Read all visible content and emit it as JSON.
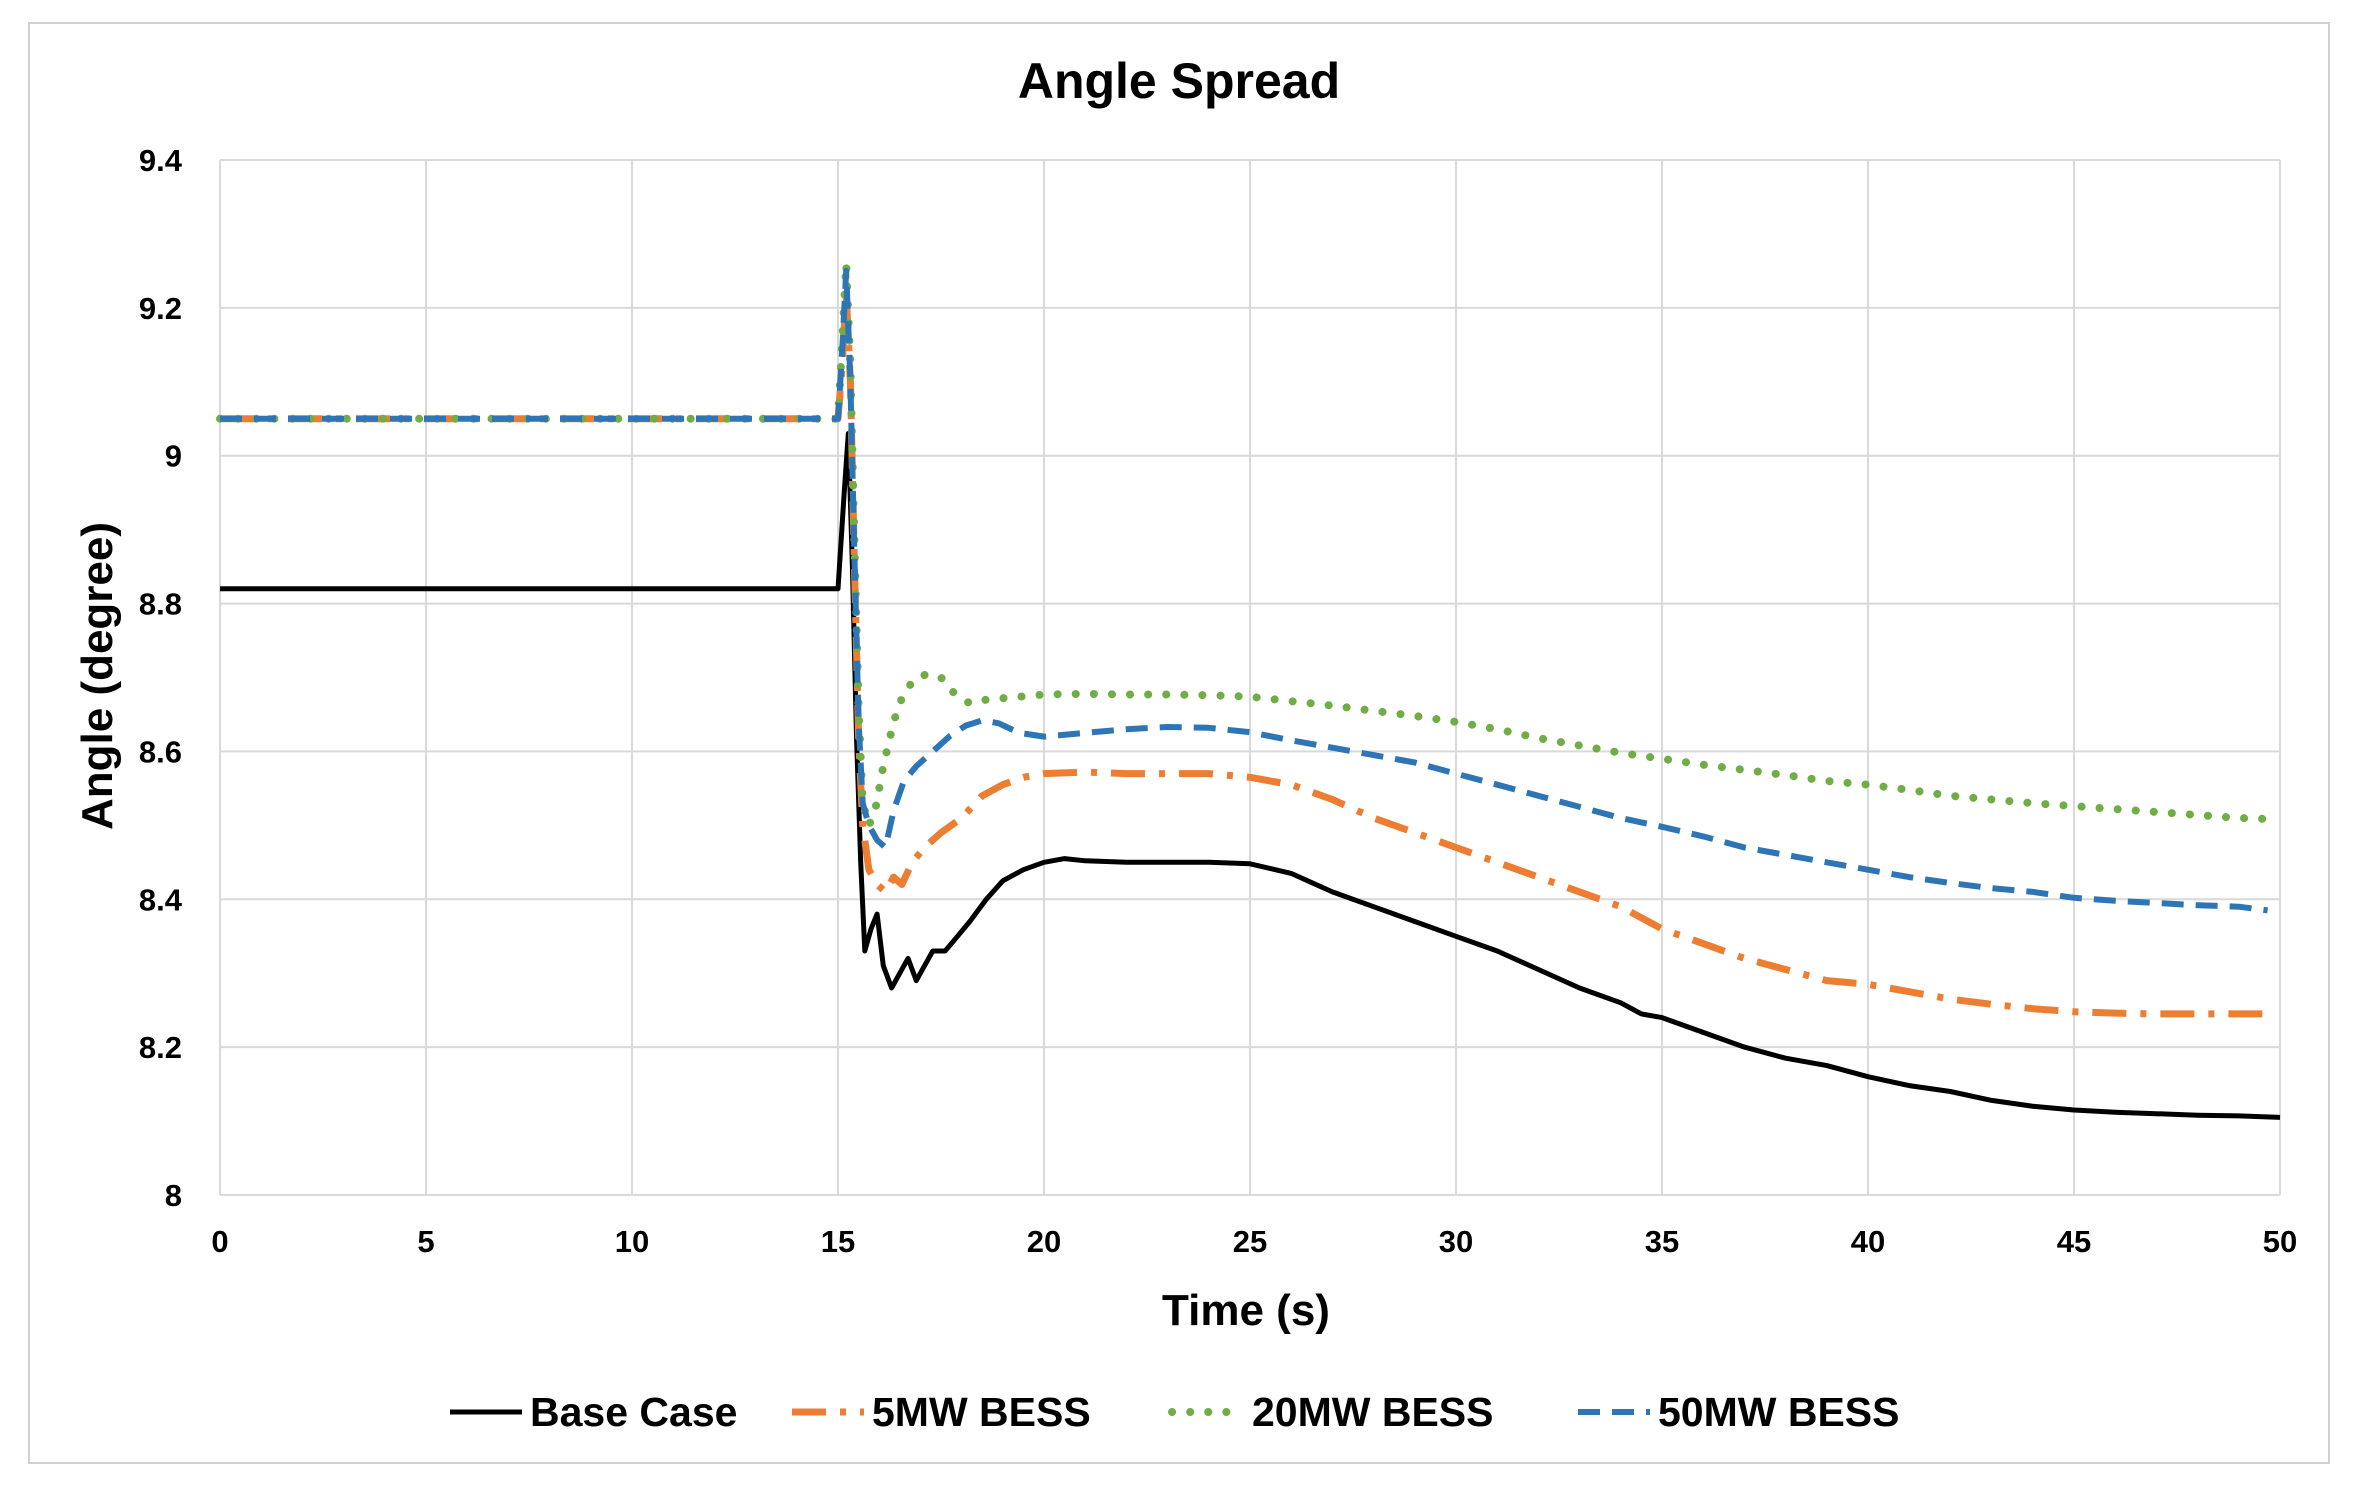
{
  "chart_data": {
    "type": "line",
    "title": "Angle Spread",
    "xlabel": "Time (s)",
    "ylabel": "Angle (degree)",
    "xlim": [
      0,
      50
    ],
    "ylim": [
      8,
      9.4
    ],
    "xticks": [
      0,
      5,
      10,
      15,
      20,
      25,
      30,
      35,
      40,
      45,
      50
    ],
    "yticks": [
      8,
      8.2,
      8.4,
      8.6,
      8.8,
      9,
      9.2,
      9.4
    ],
    "ytick_labels": [
      "8",
      "8.2",
      "8.4",
      "8.6",
      "8.8",
      "9",
      "9.2",
      "9.4"
    ],
    "grid": true,
    "legend_position": "bottom",
    "series": [
      {
        "name": "Base Case",
        "color": "#000000",
        "style": "solid",
        "points": [
          [
            0,
            8.82
          ],
          [
            15.0,
            8.82
          ],
          [
            15.15,
            8.95
          ],
          [
            15.25,
            9.03
          ],
          [
            15.35,
            8.85
          ],
          [
            15.45,
            8.62
          ],
          [
            15.55,
            8.45
          ],
          [
            15.65,
            8.33
          ],
          [
            15.8,
            8.36
          ],
          [
            15.95,
            8.38
          ],
          [
            16.1,
            8.31
          ],
          [
            16.3,
            8.28
          ],
          [
            16.5,
            8.3
          ],
          [
            16.7,
            8.32
          ],
          [
            16.9,
            8.29
          ],
          [
            17.1,
            8.31
          ],
          [
            17.3,
            8.33
          ],
          [
            17.6,
            8.33
          ],
          [
            17.9,
            8.35
          ],
          [
            18.2,
            8.37
          ],
          [
            18.6,
            8.4
          ],
          [
            19.0,
            8.425
          ],
          [
            19.5,
            8.44
          ],
          [
            20.0,
            8.45
          ],
          [
            20.5,
            8.455
          ],
          [
            21.0,
            8.452
          ],
          [
            22.0,
            8.45
          ],
          [
            23.0,
            8.45
          ],
          [
            24.0,
            8.45
          ],
          [
            25.0,
            8.448
          ],
          [
            26.0,
            8.435
          ],
          [
            27.0,
            8.41
          ],
          [
            28.0,
            8.39
          ],
          [
            29.0,
            8.37
          ],
          [
            30.0,
            8.35
          ],
          [
            31.0,
            8.33
          ],
          [
            32.0,
            8.305
          ],
          [
            33.0,
            8.28
          ],
          [
            34.0,
            8.26
          ],
          [
            34.5,
            8.245
          ],
          [
            35.0,
            8.24
          ],
          [
            36.0,
            8.22
          ],
          [
            37.0,
            8.2
          ],
          [
            38.0,
            8.185
          ],
          [
            39.0,
            8.175
          ],
          [
            40.0,
            8.16
          ],
          [
            41.0,
            8.148
          ],
          [
            42.0,
            8.14
          ],
          [
            43.0,
            8.128
          ],
          [
            44.0,
            8.12
          ],
          [
            45.0,
            8.115
          ],
          [
            46.0,
            8.112
          ],
          [
            47.0,
            8.11
          ],
          [
            48.0,
            8.108
          ],
          [
            49.0,
            8.107
          ],
          [
            50.0,
            8.105
          ]
        ]
      },
      {
        "name": "5MW BESS",
        "color": "#ED7D31",
        "style": "dashdot",
        "points": [
          [
            0,
            9.05
          ],
          [
            15.0,
            9.05
          ],
          [
            15.1,
            9.12
          ],
          [
            15.2,
            9.22
          ],
          [
            15.3,
            9.1
          ],
          [
            15.4,
            8.85
          ],
          [
            15.5,
            8.62
          ],
          [
            15.6,
            8.5
          ],
          [
            15.75,
            8.44
          ],
          [
            15.95,
            8.42
          ],
          [
            16.15,
            8.41
          ],
          [
            16.35,
            8.43
          ],
          [
            16.55,
            8.42
          ],
          [
            16.8,
            8.45
          ],
          [
            17.1,
            8.47
          ],
          [
            17.5,
            8.49
          ],
          [
            18.0,
            8.51
          ],
          [
            18.5,
            8.54
          ],
          [
            19.0,
            8.555
          ],
          [
            19.5,
            8.565
          ],
          [
            20.0,
            8.57
          ],
          [
            21.0,
            8.572
          ],
          [
            22.0,
            8.57
          ],
          [
            23.0,
            8.57
          ],
          [
            24.0,
            8.57
          ],
          [
            25.0,
            8.565
          ],
          [
            26.0,
            8.555
          ],
          [
            27.0,
            8.535
          ],
          [
            28.0,
            8.51
          ],
          [
            29.0,
            8.49
          ],
          [
            30.0,
            8.47
          ],
          [
            31.0,
            8.45
          ],
          [
            32.0,
            8.43
          ],
          [
            33.0,
            8.41
          ],
          [
            34.0,
            8.39
          ],
          [
            35.0,
            8.36
          ],
          [
            36.0,
            8.34
          ],
          [
            37.0,
            8.32
          ],
          [
            38.0,
            8.305
          ],
          [
            39.0,
            8.29
          ],
          [
            40.0,
            8.285
          ],
          [
            41.0,
            8.275
          ],
          [
            42.0,
            8.265
          ],
          [
            43.0,
            8.258
          ],
          [
            44.0,
            8.252
          ],
          [
            45.0,
            8.248
          ],
          [
            46.0,
            8.246
          ],
          [
            47.0,
            8.245
          ],
          [
            48.0,
            8.245
          ],
          [
            49.0,
            8.245
          ],
          [
            49.7,
            8.245
          ]
        ]
      },
      {
        "name": "20MW BESS",
        "color": "#70AD47",
        "style": "dotted",
        "points": [
          [
            0,
            9.05
          ],
          [
            15.0,
            9.05
          ],
          [
            15.1,
            9.15
          ],
          [
            15.2,
            9.26
          ],
          [
            15.3,
            9.12
          ],
          [
            15.4,
            8.88
          ],
          [
            15.5,
            8.66
          ],
          [
            15.6,
            8.53
          ],
          [
            15.75,
            8.5
          ],
          [
            15.9,
            8.52
          ],
          [
            16.1,
            8.58
          ],
          [
            16.35,
            8.64
          ],
          [
            16.6,
            8.68
          ],
          [
            16.9,
            8.7
          ],
          [
            17.2,
            8.705
          ],
          [
            17.5,
            8.7
          ],
          [
            17.8,
            8.68
          ],
          [
            18.2,
            8.665
          ],
          [
            18.6,
            8.67
          ],
          [
            19.0,
            8.672
          ],
          [
            20.0,
            8.677
          ],
          [
            21.0,
            8.678
          ],
          [
            22.0,
            8.677
          ],
          [
            23.0,
            8.677
          ],
          [
            24.0,
            8.676
          ],
          [
            25.0,
            8.674
          ],
          [
            26.0,
            8.668
          ],
          [
            27.0,
            8.662
          ],
          [
            28.0,
            8.655
          ],
          [
            29.0,
            8.648
          ],
          [
            30.0,
            8.64
          ],
          [
            31.0,
            8.63
          ],
          [
            32.0,
            8.618
          ],
          [
            33.0,
            8.608
          ],
          [
            34.0,
            8.598
          ],
          [
            35.0,
            8.59
          ],
          [
            36.0,
            8.582
          ],
          [
            37.0,
            8.575
          ],
          [
            38.0,
            8.568
          ],
          [
            39.0,
            8.56
          ],
          [
            40.0,
            8.555
          ],
          [
            41.0,
            8.548
          ],
          [
            42.0,
            8.54
          ],
          [
            43.0,
            8.535
          ],
          [
            44.0,
            8.53
          ],
          [
            45.0,
            8.526
          ],
          [
            46.0,
            8.522
          ],
          [
            47.0,
            8.518
          ],
          [
            48.0,
            8.514
          ],
          [
            49.0,
            8.51
          ],
          [
            50.0,
            8.508
          ]
        ]
      },
      {
        "name": "50MW BESS",
        "color": "#2E75B6",
        "style": "dashed",
        "points": [
          [
            0,
            9.05
          ],
          [
            15.0,
            9.05
          ],
          [
            15.1,
            9.14
          ],
          [
            15.2,
            9.25
          ],
          [
            15.3,
            9.1
          ],
          [
            15.4,
            8.86
          ],
          [
            15.5,
            8.64
          ],
          [
            15.6,
            8.53
          ],
          [
            15.75,
            8.5
          ],
          [
            15.95,
            8.48
          ],
          [
            16.15,
            8.47
          ],
          [
            16.35,
            8.52
          ],
          [
            16.6,
            8.56
          ],
          [
            16.9,
            8.58
          ],
          [
            17.3,
            8.6
          ],
          [
            17.7,
            8.62
          ],
          [
            18.1,
            8.635
          ],
          [
            18.5,
            8.642
          ],
          [
            18.9,
            8.638
          ],
          [
            19.4,
            8.625
          ],
          [
            20.0,
            8.62
          ],
          [
            21.0,
            8.625
          ],
          [
            22.0,
            8.63
          ],
          [
            23.0,
            8.633
          ],
          [
            24.0,
            8.632
          ],
          [
            25.0,
            8.626
          ],
          [
            26.0,
            8.615
          ],
          [
            27.0,
            8.605
          ],
          [
            28.0,
            8.595
          ],
          [
            29.0,
            8.585
          ],
          [
            30.0,
            8.57
          ],
          [
            31.0,
            8.555
          ],
          [
            32.0,
            8.54
          ],
          [
            33.0,
            8.525
          ],
          [
            34.0,
            8.51
          ],
          [
            35.0,
            8.498
          ],
          [
            36.0,
            8.485
          ],
          [
            37.0,
            8.47
          ],
          [
            38.0,
            8.46
          ],
          [
            39.0,
            8.45
          ],
          [
            40.0,
            8.44
          ],
          [
            41.0,
            8.43
          ],
          [
            42.0,
            8.422
          ],
          [
            43.0,
            8.415
          ],
          [
            44.0,
            8.41
          ],
          [
            45.0,
            8.402
          ],
          [
            46.0,
            8.398
          ],
          [
            47.0,
            8.395
          ],
          [
            48.0,
            8.392
          ],
          [
            49.0,
            8.39
          ],
          [
            49.7,
            8.385
          ]
        ]
      }
    ]
  }
}
